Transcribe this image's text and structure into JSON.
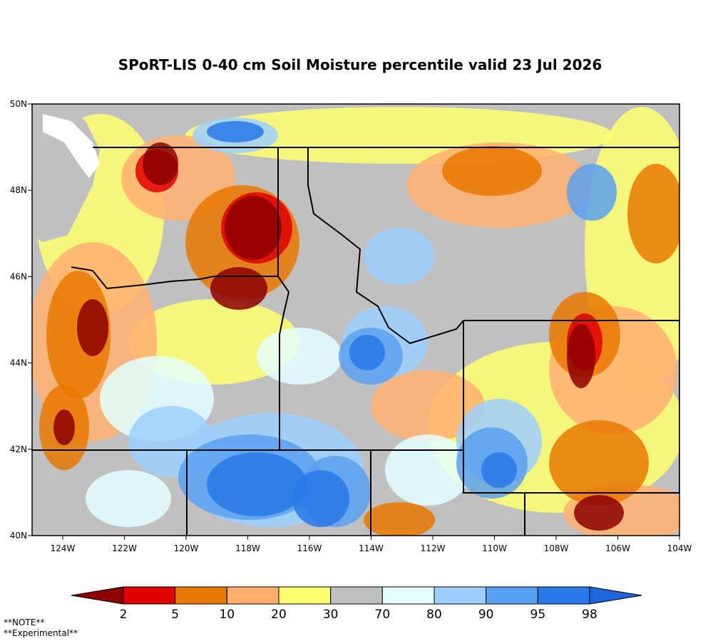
{
  "title": "SPoRT-LIS 0-40 cm Soil Moisture percentile valid 23 Jul 2026",
  "map": {
    "lon_ticks": [
      "124W",
      "122W",
      "120W",
      "118W",
      "116W",
      "114W",
      "112W",
      "110W",
      "108W",
      "106W",
      "104W"
    ],
    "lat_ticks": [
      "40N",
      "42N",
      "44N",
      "46N",
      "48N",
      "50N"
    ]
  },
  "colorbar": {
    "labels": [
      "2",
      "5",
      "10",
      "20",
      "30",
      "70",
      "80",
      "90",
      "95",
      "98"
    ],
    "colors": [
      "#8c0000",
      "#e00000",
      "#e87800",
      "#ffb070",
      "#ffff70",
      "#c0c0c0",
      "#e4ffff",
      "#9ccfff",
      "#5aa0f0",
      "#2878e8",
      "#1e64dc"
    ]
  },
  "notes": [
    "**NOTE**",
    "**Experimental**"
  ]
}
